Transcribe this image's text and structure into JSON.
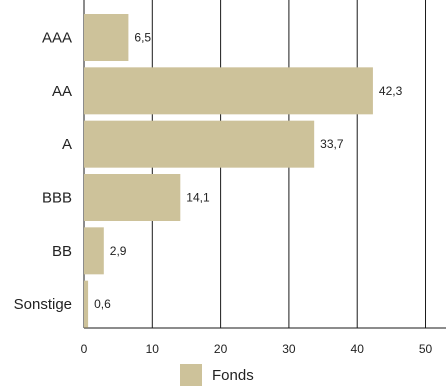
{
  "chart_data": {
    "type": "bar",
    "orientation": "horizontal",
    "categories": [
      "AAA",
      "AA",
      "A",
      "BBB",
      "BB",
      "Sonstige"
    ],
    "series": [
      {
        "name": "Fonds",
        "values": [
          6.5,
          42.3,
          33.7,
          14.1,
          2.9,
          0.6
        ]
      }
    ],
    "value_labels": [
      "6,5",
      "42,3",
      "33,7",
      "14,1",
      "2,9",
      "0,6"
    ],
    "xlim": [
      0,
      53
    ],
    "xticks": [
      0,
      10,
      20,
      30,
      40,
      50
    ],
    "xtick_labels": [
      "0",
      "10",
      "20",
      "30",
      "40",
      "50"
    ],
    "grid": "vertical",
    "legend_position": "bottom-center",
    "colors": {
      "bar": "#cdc29a",
      "grid": "#1a1a1a",
      "axis": "#1a1a1a"
    }
  }
}
